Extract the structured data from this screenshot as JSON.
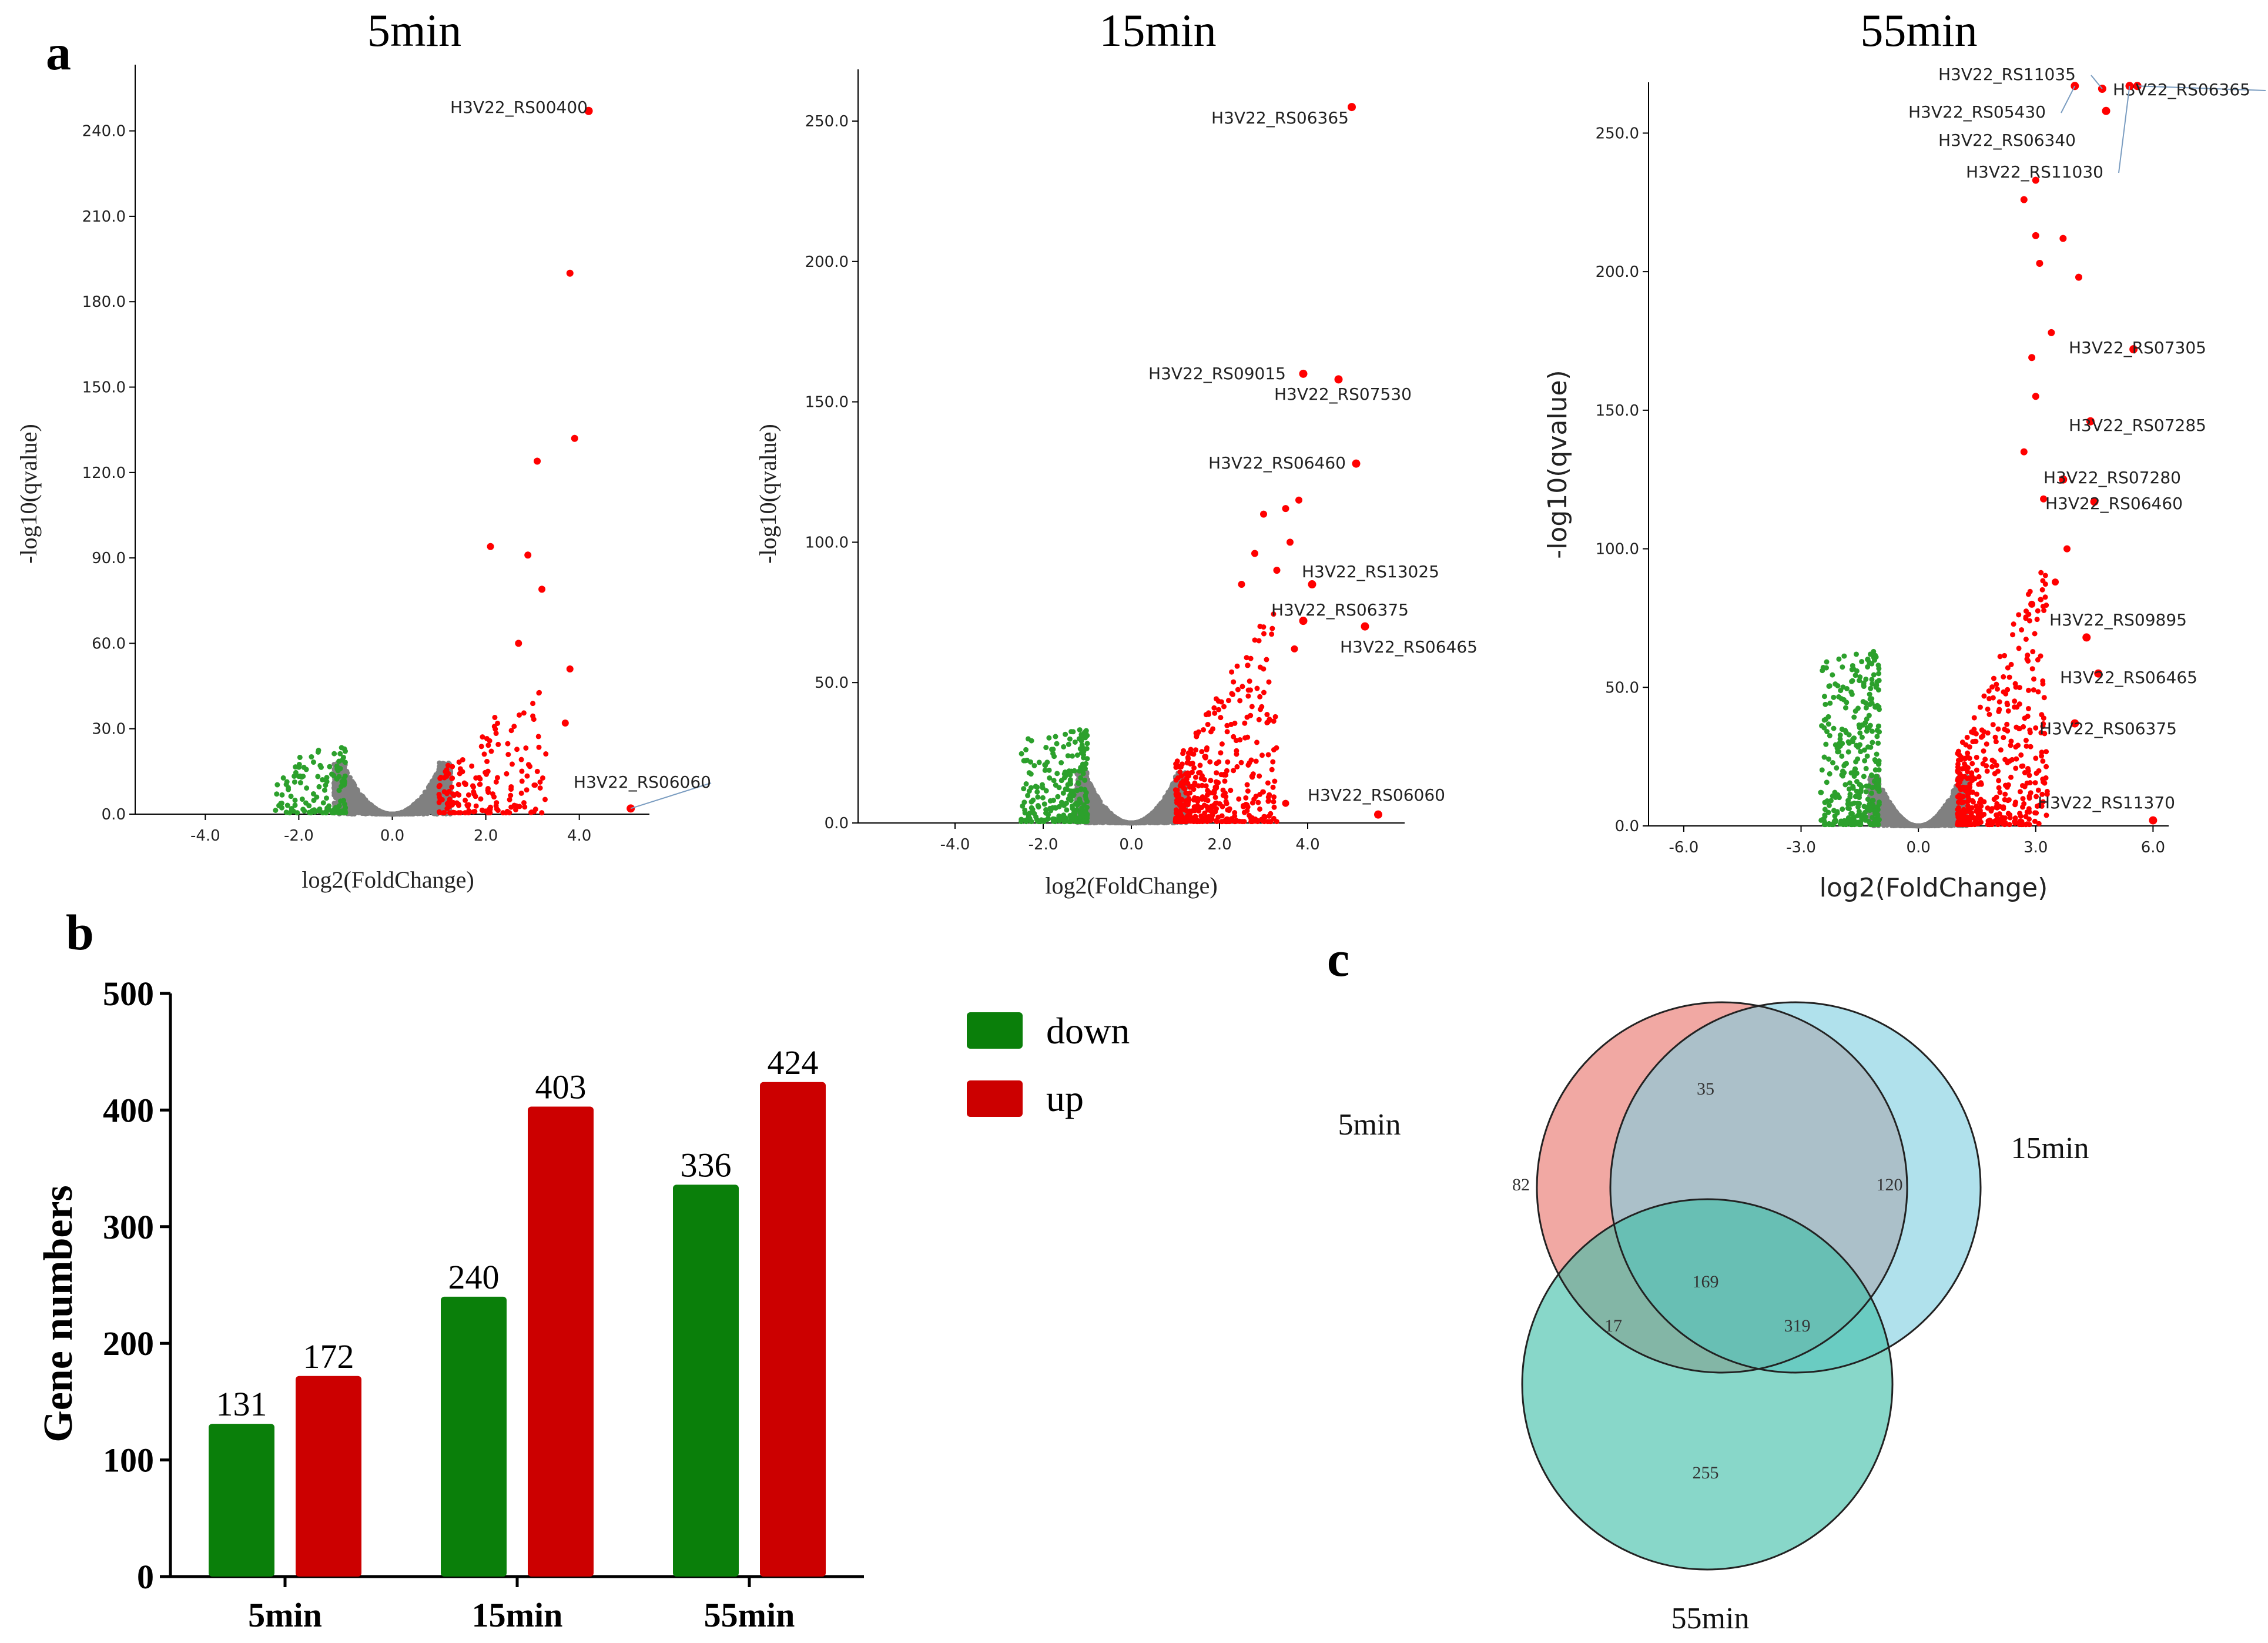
{
  "panel_letters": {
    "a": "a",
    "b": "b",
    "c": "c"
  },
  "colors": {
    "up": "#ff0000",
    "down": "#2ca02c",
    "ns": "#808080",
    "bar_down": "#0a7f0a",
    "bar_up": "#cc0000",
    "leader": "#7a9cc0"
  },
  "chart_data": [
    {
      "id": "volcano_5min",
      "type": "scatter",
      "title": "5min",
      "xlabel": "log2(FoldChange)",
      "ylabel": "-log10(qvalue)",
      "xlim": [
        -5.5,
        5.5
      ],
      "ylim": [
        0,
        255
      ],
      "xticks": [
        -4.0,
        -2.0,
        0.0,
        2.0,
        4.0
      ],
      "xtick_labels": [
        "-4.0",
        "-2.0",
        "0.0",
        "2.0",
        "4.0"
      ],
      "yticks": [
        0,
        30,
        60,
        90,
        120,
        150,
        180,
        210,
        240
      ],
      "ytick_labels": [
        "0.0",
        "30.0",
        "60.0",
        "90.0",
        "120.0",
        "150.0",
        "180.0",
        "210.0",
        "240.0"
      ],
      "cloud": {
        "up_count": 172,
        "down_count": 131,
        "up_ymax": 40,
        "down_ymax": 24,
        "seed": 11
      },
      "highlights": [
        {
          "x": 3.8,
          "y": 190
        },
        {
          "x": 3.9,
          "y": 132
        },
        {
          "x": 3.1,
          "y": 124
        },
        {
          "x": 2.1,
          "y": 94
        },
        {
          "x": 2.9,
          "y": 91
        },
        {
          "x": 3.2,
          "y": 79
        },
        {
          "x": 3.8,
          "y": 51
        },
        {
          "x": 3.7,
          "y": 32
        },
        {
          "x": 2.7,
          "y": 60
        }
      ],
      "labeled": [
        {
          "name": "H3V22_RS00400",
          "x": 4.2,
          "y": 247
        },
        {
          "name": "H3V22_RS06060",
          "x": 5.1,
          "y": 2
        }
      ]
    },
    {
      "id": "volcano_15min",
      "type": "scatter",
      "title": "15min",
      "xlabel": "log2(FoldChange)",
      "ylabel": "-log10(qvalue)",
      "xlim": [
        -6.2,
        6.2
      ],
      "ylim": [
        0,
        268
      ],
      "xticks": [
        -4.0,
        -2.0,
        0.0,
        2.0,
        4.0
      ],
      "xtick_labels": [
        "-4.0",
        "-2.0",
        "0.0",
        "2.0",
        "4.0"
      ],
      "yticks": [
        0,
        50,
        100,
        150,
        200,
        250
      ],
      "ytick_labels": [
        "0.0",
        "50.0",
        "100.0",
        "150.0",
        "200.0",
        "250.0"
      ],
      "cloud": {
        "up_count": 403,
        "down_count": 240,
        "up_ymax": 60,
        "down_ymax": 34,
        "seed": 23
      },
      "highlights": [
        {
          "x": 3.5,
          "y": 112
        },
        {
          "x": 3.6,
          "y": 100
        },
        {
          "x": 3.0,
          "y": 110
        },
        {
          "x": 2.8,
          "y": 96
        },
        {
          "x": 3.3,
          "y": 90
        },
        {
          "x": 2.5,
          "y": 85
        },
        {
          "x": 3.7,
          "y": 62
        },
        {
          "x": 3.5,
          "y": 7
        },
        {
          "x": 3.8,
          "y": 115
        }
      ],
      "labeled": [
        {
          "name": "H3V22_RS06365",
          "x": 5.0,
          "y": 255
        },
        {
          "name": "H3V22_RS09015",
          "x": 3.9,
          "y": 160
        },
        {
          "name": "H3V22_RS07530",
          "x": 4.7,
          "y": 158
        },
        {
          "name": "H3V22_RS06460",
          "x": 5.1,
          "y": 128
        },
        {
          "name": "H3V22_RS13025",
          "x": 4.1,
          "y": 85
        },
        {
          "name": "H3V22_RS06375",
          "x": 3.9,
          "y": 72
        },
        {
          "name": "H3V22_RS06465",
          "x": 5.3,
          "y": 70
        },
        {
          "name": "H3V22_RS06060",
          "x": 5.6,
          "y": 3
        }
      ]
    },
    {
      "id": "volcano_55min",
      "type": "scatter",
      "title": "55min",
      "xlabel": "log2(FoldChange)",
      "ylabel": "-log10(qvalue)",
      "xlim": [
        -6.9,
        6.4
      ],
      "ylim": [
        0,
        280
      ],
      "xticks": [
        -6.0,
        -3.0,
        0.0,
        3.0,
        6.0
      ],
      "xtick_labels": [
        "-6.0",
        "-3.0",
        "0.0",
        "3.0",
        "6.0"
      ],
      "yticks": [
        0,
        50,
        100,
        150,
        200,
        250
      ],
      "ytick_labels": [
        "0.0",
        "50.0",
        "100.0",
        "150.0",
        "200.0",
        "250.0"
      ],
      "cloud": {
        "up_count": 424,
        "down_count": 336,
        "up_ymax": 75,
        "down_ymax": 65,
        "seed": 37
      },
      "highlights": [
        {
          "x": 3.0,
          "y": 233
        },
        {
          "x": 2.7,
          "y": 226
        },
        {
          "x": 3.0,
          "y": 213
        },
        {
          "x": 3.7,
          "y": 212
        },
        {
          "x": 3.1,
          "y": 203
        },
        {
          "x": 4.1,
          "y": 198
        },
        {
          "x": 3.4,
          "y": 178
        },
        {
          "x": 2.9,
          "y": 169
        },
        {
          "x": 3.0,
          "y": 155
        },
        {
          "x": 2.7,
          "y": 135
        },
        {
          "x": 3.2,
          "y": 118
        },
        {
          "x": 3.8,
          "y": 100
        },
        {
          "x": 3.5,
          "y": 88
        },
        {
          "x": 2.9,
          "y": 80
        }
      ],
      "labeled": [
        {
          "name": "H3V22_RS11035",
          "x": 4.7,
          "y": 266
        },
        {
          "name": "H3V22_RS06365",
          "x": 5.6,
          "y": 267
        },
        {
          "name": "H3V22_RS05430",
          "x": 4.0,
          "y": 267
        },
        {
          "name": "H3V22_RS06340",
          "x": 4.8,
          "y": 258
        },
        {
          "name": "H3V22_RS11030",
          "x": 5.4,
          "y": 267
        },
        {
          "name": "H3V22_RS07305",
          "x": 5.5,
          "y": 172
        },
        {
          "name": "H3V22_RS07285",
          "x": 4.4,
          "y": 146
        },
        {
          "name": "H3V22_RS07280",
          "x": 3.7,
          "y": 125
        },
        {
          "name": "H3V22_RS06460",
          "x": 4.5,
          "y": 117
        },
        {
          "name": "H3V22_RS09895",
          "x": 4.3,
          "y": 68
        },
        {
          "name": "H3V22_RS06465",
          "x": 4.6,
          "y": 55
        },
        {
          "name": "H3V22_RS06375",
          "x": 4.0,
          "y": 37
        },
        {
          "name": "H3V22_RS11370",
          "x": 6.0,
          "y": 2
        }
      ]
    },
    {
      "id": "bar_gene_numbers",
      "type": "bar",
      "categories": [
        "5min",
        "15min",
        "55min"
      ],
      "series": [
        {
          "name": "down",
          "values": [
            131,
            240,
            336
          ]
        },
        {
          "name": "up",
          "values": [
            172,
            403,
            424
          ]
        }
      ],
      "value_labels": {
        "down": [
          "131",
          "240",
          "336"
        ],
        "up": [
          "172",
          "403",
          "424"
        ]
      },
      "ylabel": "Gene numbers",
      "ylim": [
        0,
        500
      ],
      "yticks": [
        0,
        100,
        200,
        300,
        400,
        500
      ],
      "ytick_labels": [
        "0",
        "100",
        "200",
        "300",
        "400",
        "500"
      ],
      "legend": [
        "down",
        "up"
      ]
    },
    {
      "id": "venn",
      "type": "venn",
      "sets": [
        "5min",
        "15min",
        "55min"
      ],
      "regions": {
        "only_5min": "82",
        "only_15min": "120",
        "only_55min": "255",
        "5min_15min": "35",
        "5min_55min": "17",
        "15min_55min": "319",
        "all": "169"
      }
    }
  ]
}
